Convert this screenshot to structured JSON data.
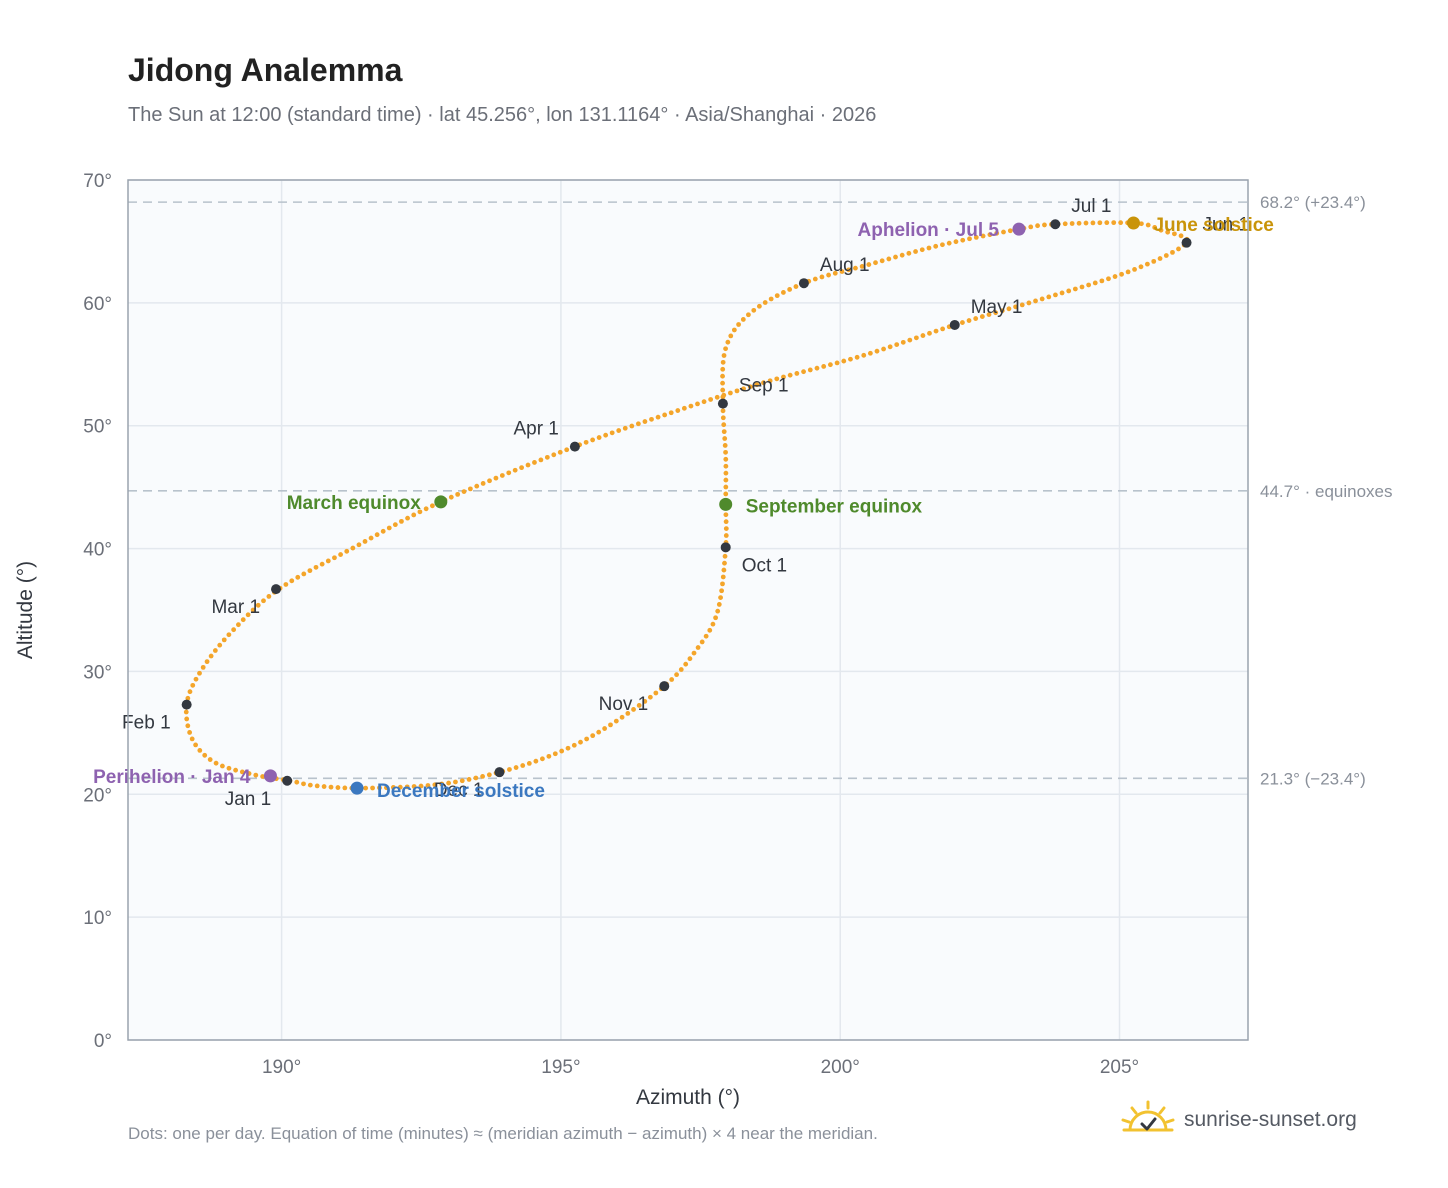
{
  "title": "Jidong Analemma",
  "subtitle": "The Sun at 12:00 (standard time) · lat 45.256°, lon 131.1164° · Asia/Shanghai · 2026",
  "footnote": "Dots: one per day. Equation of time (minutes) ≈ (meridian azimuth − azimuth) × 4 near the meridian.",
  "brand": {
    "text": "sunrise-sunset.org",
    "icon": "sun-logo-icon"
  },
  "colors": {
    "curve": "#f4a52a",
    "month_marker": "#333840",
    "aphelion": "#8e62b0",
    "perihelion": "#8e62b0",
    "equinox": "#4f8a2c",
    "june_solstice": "#c9940a",
    "december_solstice": "#3b78c0",
    "reference_line": "#b8c2cc",
    "plot_background": "#f9fbfd",
    "grid": "#e3e8ee"
  },
  "chart_data": {
    "type": "scatter",
    "xlabel": "Azimuth (°)",
    "ylabel": "Altitude (°)",
    "xlim": [
      187.25,
      207.3
    ],
    "ylim": [
      0,
      70
    ],
    "x_ticks": [
      190,
      195,
      200,
      205
    ],
    "x_tick_labels": [
      "190°",
      "195°",
      "200°",
      "205°"
    ],
    "y_ticks": [
      0,
      10,
      20,
      30,
      40,
      50,
      60,
      70
    ],
    "y_tick_labels": [
      "0°",
      "10°",
      "20°",
      "30°",
      "40°",
      "50°",
      "60°",
      "70°"
    ],
    "grid": true,
    "reference_lines": [
      {
        "value": 68.2,
        "label": "68.2° (+23.4°)"
      },
      {
        "value": 44.7,
        "label": "44.7° · equinoxes"
      },
      {
        "value": 21.3,
        "label": "21.3° (−23.4°)"
      }
    ],
    "series": [
      {
        "points": [
          [
            190.15,
            21.1
          ],
          [
            189.5,
            21.6
          ],
          [
            188.8,
            22.6
          ],
          [
            188.4,
            24.5
          ],
          [
            188.3,
            27.3
          ],
          [
            188.55,
            30.0
          ],
          [
            189.1,
            33.2
          ],
          [
            189.95,
            36.7
          ],
          [
            191.3,
            40.1
          ],
          [
            192.85,
            43.8
          ],
          [
            195.25,
            48.3
          ],
          [
            197.2,
            51.4
          ],
          [
            198.7,
            53.6
          ],
          [
            200.4,
            55.7
          ],
          [
            202.05,
            58.2
          ],
          [
            203.6,
            60.3
          ],
          [
            205.2,
            62.6
          ],
          [
            206.2,
            64.9
          ],
          [
            205.75,
            65.9
          ],
          [
            205.25,
            66.5
          ],
          [
            203.85,
            66.4
          ],
          [
            203.2,
            66.0
          ],
          [
            201.8,
            64.7
          ],
          [
            200.5,
            63.1
          ],
          [
            199.35,
            61.6
          ],
          [
            198.4,
            59.2
          ],
          [
            197.95,
            56.3
          ],
          [
            197.9,
            51.8
          ],
          [
            197.95,
            47.5
          ],
          [
            197.95,
            43.6
          ],
          [
            197.95,
            40.1
          ],
          [
            197.8,
            34.8
          ],
          [
            197.4,
            31.6
          ],
          [
            196.85,
            28.8
          ],
          [
            195.8,
            25.4
          ],
          [
            194.9,
            23.3
          ],
          [
            193.9,
            21.8
          ],
          [
            192.8,
            20.8
          ],
          [
            191.45,
            20.5
          ],
          [
            190.6,
            20.7
          ],
          [
            190.15,
            21.1
          ]
        ]
      },
      {
        "name": "Month markers",
        "points": [
          {
            "label": "Jan 1",
            "x": 190.1,
            "y": 21.1
          },
          {
            "label": "Feb 1",
            "x": 188.3,
            "y": 27.3
          },
          {
            "label": "Mar 1",
            "x": 189.9,
            "y": 36.7
          },
          {
            "label": "Apr 1",
            "x": 195.25,
            "y": 48.3
          },
          {
            "label": "May 1",
            "x": 202.05,
            "y": 58.2
          },
          {
            "label": "Jun 1",
            "x": 206.2,
            "y": 64.9
          },
          {
            "label": "Jul 1",
            "x": 203.85,
            "y": 66.4
          },
          {
            "label": "Aug 1",
            "x": 199.35,
            "y": 61.6
          },
          {
            "label": "Sep 1",
            "x": 197.9,
            "y": 51.8
          },
          {
            "label": "Oct 1",
            "x": 197.95,
            "y": 40.1
          },
          {
            "label": "Nov 1",
            "x": 196.85,
            "y": 28.8
          },
          {
            "label": "Dec 1",
            "x": 193.9,
            "y": 21.8
          }
        ]
      },
      {
        "name": "Events",
        "points": [
          {
            "label": "Perihelion · Jan 4",
            "x": 189.8,
            "y": 21.5,
            "color_key": "perihelion"
          },
          {
            "label": "March equinox",
            "x": 192.85,
            "y": 43.8,
            "color_key": "equinox"
          },
          {
            "label": "June solstice",
            "x": 205.25,
            "y": 66.5,
            "color_key": "june_solstice"
          },
          {
            "label": "Aphelion · Jul 5",
            "x": 203.2,
            "y": 66.0,
            "color_key": "aphelion"
          },
          {
            "label": "September equinox",
            "x": 197.95,
            "y": 43.6,
            "color_key": "equinox"
          },
          {
            "label": "December solstice",
            "x": 191.35,
            "y": 20.5,
            "color_key": "december_solstice"
          }
        ]
      }
    ]
  }
}
